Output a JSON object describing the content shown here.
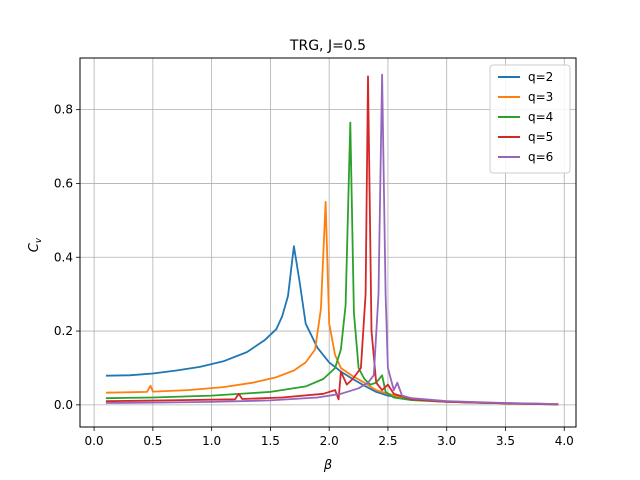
{
  "chart_data": {
    "type": "line",
    "title": "TRG, J=0.5",
    "xlabel": "β",
    "ylabel": "C",
    "ylabel_sub": "v",
    "xlim": [
      -0.12,
      4.1
    ],
    "ylim": [
      -0.06,
      0.94
    ],
    "xticks": [
      0.0,
      0.5,
      1.0,
      1.5,
      2.0,
      2.5,
      3.0,
      3.5,
      4.0
    ],
    "xtick_labels": [
      "0.0",
      "0.5",
      "1.0",
      "1.5",
      "2.0",
      "2.5",
      "3.0",
      "3.5",
      "4.0"
    ],
    "yticks": [
      0.0,
      0.2,
      0.4,
      0.6,
      0.8
    ],
    "ytick_labels": [
      "0.0",
      "0.2",
      "0.4",
      "0.6",
      "0.8"
    ],
    "grid": true,
    "legend": "top-right",
    "series": [
      {
        "name": "q=2",
        "color": "#1f77b4",
        "points": [
          [
            0.1,
            0.079
          ],
          [
            0.3,
            0.08
          ],
          [
            0.5,
            0.085
          ],
          [
            0.7,
            0.093
          ],
          [
            0.9,
            0.103
          ],
          [
            1.1,
            0.118
          ],
          [
            1.3,
            0.143
          ],
          [
            1.45,
            0.175
          ],
          [
            1.55,
            0.205
          ],
          [
            1.6,
            0.24
          ],
          [
            1.65,
            0.295
          ],
          [
            1.7,
            0.43
          ],
          [
            1.75,
            0.33
          ],
          [
            1.8,
            0.22
          ],
          [
            1.9,
            0.155
          ],
          [
            2.0,
            0.115
          ],
          [
            2.1,
            0.09
          ],
          [
            2.2,
            0.07
          ],
          [
            2.3,
            0.052
          ],
          [
            2.4,
            0.035
          ],
          [
            2.5,
            0.025
          ],
          [
            2.6,
            0.02
          ],
          [
            2.8,
            0.013
          ],
          [
            3.0,
            0.009
          ],
          [
            3.2,
            0.006
          ],
          [
            3.4,
            0.005
          ],
          [
            3.6,
            0.004
          ],
          [
            3.8,
            0.003
          ],
          [
            3.95,
            0.002
          ]
        ]
      },
      {
        "name": "q=3",
        "color": "#ff7f0e",
        "points": [
          [
            0.1,
            0.033
          ],
          [
            0.45,
            0.035
          ],
          [
            0.48,
            0.052
          ],
          [
            0.5,
            0.036
          ],
          [
            0.8,
            0.04
          ],
          [
            1.1,
            0.048
          ],
          [
            1.35,
            0.06
          ],
          [
            1.55,
            0.075
          ],
          [
            1.7,
            0.093
          ],
          [
            1.8,
            0.115
          ],
          [
            1.88,
            0.15
          ],
          [
            1.93,
            0.26
          ],
          [
            1.97,
            0.55
          ],
          [
            2.0,
            0.22
          ],
          [
            2.05,
            0.135
          ],
          [
            2.1,
            0.1
          ],
          [
            2.2,
            0.078
          ],
          [
            2.3,
            0.06
          ],
          [
            2.4,
            0.04
          ],
          [
            2.5,
            0.03
          ],
          [
            2.6,
            0.022
          ],
          [
            2.8,
            0.014
          ],
          [
            3.0,
            0.01
          ],
          [
            3.3,
            0.006
          ],
          [
            3.6,
            0.004
          ],
          [
            3.8,
            0.003
          ],
          [
            3.95,
            0.002
          ]
        ]
      },
      {
        "name": "q=4",
        "color": "#2ca02c",
        "points": [
          [
            0.1,
            0.018
          ],
          [
            0.5,
            0.02
          ],
          [
            1.0,
            0.025
          ],
          [
            1.5,
            0.035
          ],
          [
            1.8,
            0.05
          ],
          [
            1.95,
            0.07
          ],
          [
            2.05,
            0.1
          ],
          [
            2.1,
            0.15
          ],
          [
            2.14,
            0.27
          ],
          [
            2.18,
            0.765
          ],
          [
            2.21,
            0.25
          ],
          [
            2.25,
            0.1
          ],
          [
            2.3,
            0.07
          ],
          [
            2.35,
            0.055
          ],
          [
            2.4,
            0.06
          ],
          [
            2.45,
            0.08
          ],
          [
            2.48,
            0.035
          ],
          [
            2.55,
            0.02
          ],
          [
            2.7,
            0.013
          ],
          [
            3.0,
            0.008
          ],
          [
            3.5,
            0.004
          ],
          [
            3.8,
            0.002
          ],
          [
            3.95,
            0.001
          ]
        ]
      },
      {
        "name": "q=5",
        "color": "#d62728",
        "points": [
          [
            0.1,
            0.01
          ],
          [
            0.6,
            0.012
          ],
          [
            1.2,
            0.015
          ],
          [
            1.23,
            0.03
          ],
          [
            1.26,
            0.016
          ],
          [
            1.6,
            0.02
          ],
          [
            1.95,
            0.03
          ],
          [
            2.05,
            0.04
          ],
          [
            2.08,
            0.015
          ],
          [
            2.1,
            0.09
          ],
          [
            2.15,
            0.055
          ],
          [
            2.2,
            0.07
          ],
          [
            2.27,
            0.1
          ],
          [
            2.31,
            0.3
          ],
          [
            2.33,
            0.89
          ],
          [
            2.36,
            0.2
          ],
          [
            2.4,
            0.06
          ],
          [
            2.45,
            0.04
          ],
          [
            2.5,
            0.055
          ],
          [
            2.55,
            0.03
          ],
          [
            2.6,
            0.025
          ],
          [
            2.7,
            0.015
          ],
          [
            3.0,
            0.008
          ],
          [
            3.5,
            0.004
          ],
          [
            3.8,
            0.002
          ],
          [
            3.95,
            0.001
          ]
        ]
      },
      {
        "name": "q=6",
        "color": "#9467bd",
        "points": [
          [
            0.1,
            0.005
          ],
          [
            0.5,
            0.006
          ],
          [
            1.0,
            0.008
          ],
          [
            1.5,
            0.012
          ],
          [
            1.9,
            0.02
          ],
          [
            2.1,
            0.03
          ],
          [
            2.25,
            0.045
          ],
          [
            2.33,
            0.06
          ],
          [
            2.38,
            0.08
          ],
          [
            2.42,
            0.3
          ],
          [
            2.45,
            0.895
          ],
          [
            2.48,
            0.3
          ],
          [
            2.5,
            0.1
          ],
          [
            2.55,
            0.04
          ],
          [
            2.58,
            0.06
          ],
          [
            2.62,
            0.025
          ],
          [
            2.7,
            0.018
          ],
          [
            3.0,
            0.01
          ],
          [
            3.5,
            0.005
          ],
          [
            3.8,
            0.003
          ],
          [
            3.95,
            0.002
          ]
        ]
      }
    ]
  }
}
